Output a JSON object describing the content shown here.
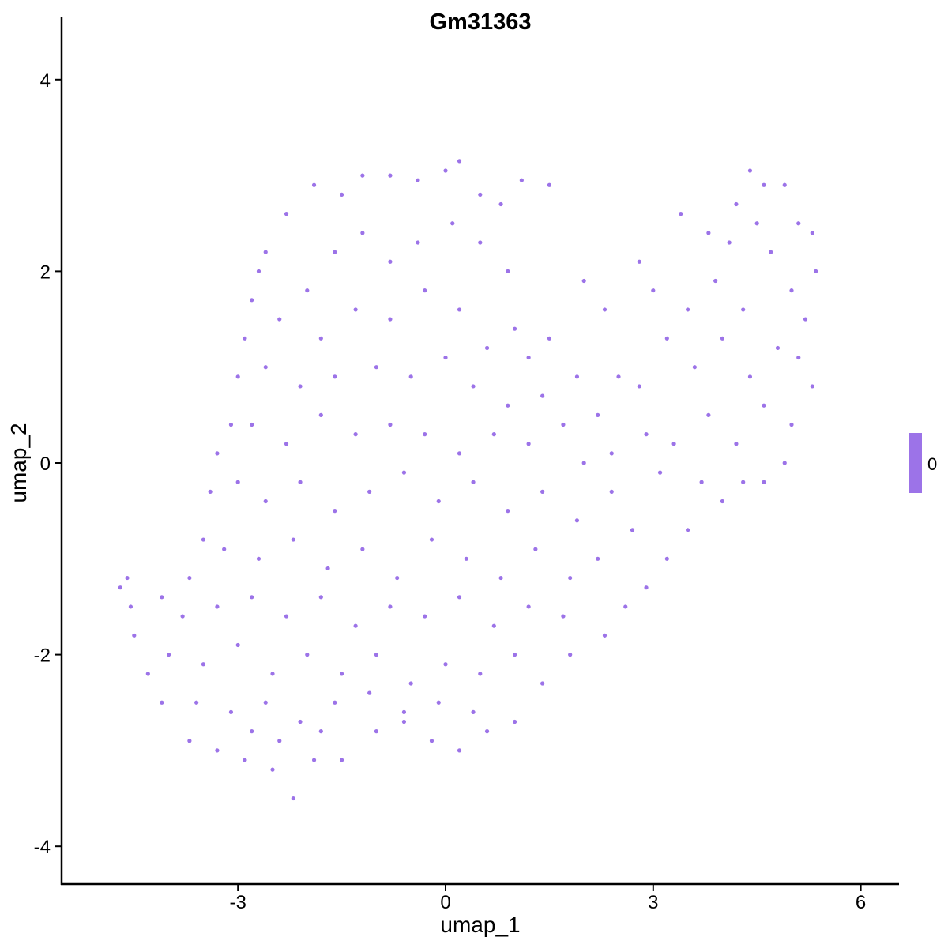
{
  "chart_data": {
    "type": "scatter",
    "title": "Gm31363",
    "xlabel": "umap_1",
    "ylabel": "umap_2",
    "xlim": [
      -5.6,
      6.6
    ],
    "ylim": [
      -4.3,
      4.4
    ],
    "xticks": [
      -3,
      0,
      3,
      6
    ],
    "yticks": [
      -4,
      -2,
      0,
      2,
      4
    ],
    "grid": false,
    "point_color": "#9c73e8",
    "legend": {
      "type": "colorbar",
      "placement": "right",
      "label": "0",
      "color": "#9c73e8"
    },
    "points": [
      [
        -2.6,
        2.2
      ],
      [
        -2.3,
        2.6
      ],
      [
        -1.9,
        2.9
      ],
      [
        -1.5,
        2.8
      ],
      [
        -1.2,
        3.0
      ],
      [
        -0.8,
        3.0
      ],
      [
        -0.4,
        2.95
      ],
      [
        0.0,
        3.05
      ],
      [
        0.2,
        3.15
      ],
      [
        0.5,
        2.8
      ],
      [
        0.8,
        2.7
      ],
      [
        1.1,
        2.95
      ],
      [
        1.5,
        2.9
      ],
      [
        3.4,
        2.6
      ],
      [
        3.8,
        2.4
      ],
      [
        4.2,
        2.7
      ],
      [
        4.4,
        3.05
      ],
      [
        4.6,
        2.9
      ],
      [
        4.9,
        2.9
      ],
      [
        5.1,
        2.5
      ],
      [
        5.3,
        2.4
      ],
      [
        5.35,
        2.0
      ],
      [
        5.2,
        1.5
      ],
      [
        5.1,
        1.1
      ],
      [
        5.3,
        0.8
      ],
      [
        5.0,
        0.4
      ],
      [
        4.9,
        0.0
      ],
      [
        4.6,
        -0.2
      ],
      [
        4.0,
        -0.4
      ],
      [
        3.5,
        -0.7
      ],
      [
        3.2,
        -1.0
      ],
      [
        2.9,
        -1.3
      ],
      [
        2.6,
        -1.5
      ],
      [
        2.3,
        -1.8
      ],
      [
        1.8,
        -2.0
      ],
      [
        1.4,
        -2.3
      ],
      [
        1.0,
        -2.7
      ],
      [
        0.6,
        -2.8
      ],
      [
        0.2,
        -3.0
      ],
      [
        -0.2,
        -2.9
      ],
      [
        -0.6,
        -2.7
      ],
      [
        -1.0,
        -2.8
      ],
      [
        -1.5,
        -3.1
      ],
      [
        -1.9,
        -3.1
      ],
      [
        -2.2,
        -3.5
      ],
      [
        -2.5,
        -3.2
      ],
      [
        -2.9,
        -3.1
      ],
      [
        -3.3,
        -3.0
      ],
      [
        -3.7,
        -2.9
      ],
      [
        -4.1,
        -2.5
      ],
      [
        -4.3,
        -2.2
      ],
      [
        -4.5,
        -1.8
      ],
      [
        -4.7,
        -1.3
      ],
      [
        -4.6,
        -1.2
      ],
      [
        -4.55,
        -1.5
      ],
      [
        -4.1,
        -1.4
      ],
      [
        -3.7,
        -1.2
      ],
      [
        -3.5,
        -0.8
      ],
      [
        -3.4,
        -0.3
      ],
      [
        -3.3,
        0.1
      ],
      [
        -3.1,
        0.4
      ],
      [
        -3.0,
        0.9
      ],
      [
        -2.9,
        1.3
      ],
      [
        -2.8,
        1.7
      ],
      [
        -2.7,
        2.0
      ],
      [
        1.0,
        1.4
      ],
      [
        1.5,
        1.3
      ],
      [
        2.0,
        1.9
      ],
      [
        2.3,
        1.6
      ],
      [
        2.8,
        2.1
      ],
      [
        3.0,
        1.8
      ],
      [
        2.5,
        0.9
      ],
      [
        2.8,
        0.8
      ],
      [
        3.3,
        0.2
      ],
      [
        3.1,
        -0.1
      ],
      [
        -2.4,
        1.5
      ],
      [
        -2.0,
        1.8
      ],
      [
        -1.6,
        2.2
      ],
      [
        -1.2,
        2.4
      ],
      [
        -0.8,
        2.1
      ],
      [
        -0.4,
        2.3
      ],
      [
        0.1,
        2.5
      ],
      [
        0.5,
        2.3
      ],
      [
        0.9,
        2.0
      ],
      [
        -1.8,
        1.3
      ],
      [
        -1.3,
        1.6
      ],
      [
        -0.8,
        1.5
      ],
      [
        -0.3,
        1.8
      ],
      [
        0.2,
        1.6
      ],
      [
        0.6,
        1.2
      ],
      [
        1.2,
        1.1
      ],
      [
        -2.6,
        1.0
      ],
      [
        -2.1,
        0.8
      ],
      [
        -1.6,
        0.9
      ],
      [
        -1.0,
        1.0
      ],
      [
        -0.5,
        0.9
      ],
      [
        0.0,
        1.1
      ],
      [
        0.4,
        0.8
      ],
      [
        0.9,
        0.6
      ],
      [
        1.4,
        0.7
      ],
      [
        1.9,
        0.9
      ],
      [
        2.2,
        0.5
      ],
      [
        -2.8,
        0.4
      ],
      [
        -2.3,
        0.2
      ],
      [
        -1.8,
        0.5
      ],
      [
        -1.3,
        0.3
      ],
      [
        -0.8,
        0.4
      ],
      [
        -0.3,
        0.3
      ],
      [
        0.2,
        0.1
      ],
      [
        0.7,
        0.3
      ],
      [
        1.2,
        0.2
      ],
      [
        1.7,
        0.4
      ],
      [
        2.0,
        0.0
      ],
      [
        -3.0,
        -0.2
      ],
      [
        -2.6,
        -0.4
      ],
      [
        -2.1,
        -0.2
      ],
      [
        -1.6,
        -0.5
      ],
      [
        -1.1,
        -0.3
      ],
      [
        -0.6,
        -0.1
      ],
      [
        -0.1,
        -0.4
      ],
      [
        0.4,
        -0.2
      ],
      [
        0.9,
        -0.5
      ],
      [
        1.4,
        -0.3
      ],
      [
        1.9,
        -0.6
      ],
      [
        2.4,
        -0.3
      ],
      [
        -3.2,
        -0.9
      ],
      [
        -2.7,
        -1.0
      ],
      [
        -2.2,
        -0.8
      ],
      [
        -1.7,
        -1.1
      ],
      [
        -1.2,
        -0.9
      ],
      [
        -0.7,
        -1.2
      ],
      [
        -0.2,
        -0.8
      ],
      [
        0.3,
        -1.0
      ],
      [
        0.8,
        -1.2
      ],
      [
        1.3,
        -0.9
      ],
      [
        1.8,
        -1.2
      ],
      [
        2.2,
        -1.0
      ],
      [
        -3.8,
        -1.6
      ],
      [
        -3.3,
        -1.5
      ],
      [
        -2.8,
        -1.4
      ],
      [
        -2.3,
        -1.6
      ],
      [
        -1.8,
        -1.4
      ],
      [
        -1.3,
        -1.7
      ],
      [
        -0.8,
        -1.5
      ],
      [
        -0.3,
        -1.6
      ],
      [
        0.2,
        -1.4
      ],
      [
        0.7,
        -1.7
      ],
      [
        1.2,
        -1.5
      ],
      [
        1.7,
        -1.6
      ],
      [
        -4.0,
        -2.0
      ],
      [
        -3.5,
        -2.1
      ],
      [
        -3.0,
        -1.9
      ],
      [
        -2.5,
        -2.2
      ],
      [
        -2.0,
        -2.0
      ],
      [
        -1.5,
        -2.2
      ],
      [
        -1.0,
        -2.0
      ],
      [
        -0.5,
        -2.3
      ],
      [
        0.0,
        -2.1
      ],
      [
        0.5,
        -2.2
      ],
      [
        1.0,
        -2.0
      ],
      [
        -3.6,
        -2.5
      ],
      [
        -3.1,
        -2.6
      ],
      [
        -2.6,
        -2.5
      ],
      [
        -2.1,
        -2.7
      ],
      [
        -1.6,
        -2.5
      ],
      [
        -1.1,
        -2.4
      ],
      [
        -0.6,
        -2.6
      ],
      [
        -0.1,
        -2.5
      ],
      [
        0.4,
        -2.6
      ],
      [
        -2.4,
        -2.9
      ],
      [
        -1.8,
        -2.8
      ],
      [
        -2.8,
        -2.8
      ],
      [
        3.6,
        1.0
      ],
      [
        4.0,
        1.3
      ],
      [
        4.4,
        0.9
      ],
      [
        4.8,
        1.2
      ],
      [
        3.8,
        0.5
      ],
      [
        4.2,
        0.2
      ],
      [
        4.6,
        0.6
      ],
      [
        3.5,
        1.6
      ],
      [
        3.9,
        1.9
      ],
      [
        4.3,
        1.6
      ],
      [
        4.7,
        2.2
      ],
      [
        5.0,
        1.8
      ],
      [
        3.2,
        1.3
      ],
      [
        4.1,
        2.3
      ],
      [
        4.5,
        2.5
      ],
      [
        3.7,
        -0.2
      ],
      [
        4.3,
        -0.2
      ],
      [
        2.7,
        -0.7
      ],
      [
        2.4,
        0.1
      ],
      [
        2.9,
        0.3
      ]
    ]
  }
}
